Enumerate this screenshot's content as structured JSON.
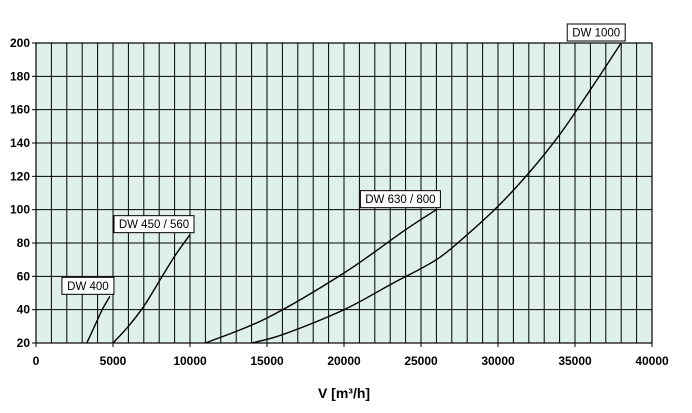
{
  "chart_data": {
    "type": "line",
    "title": "",
    "xlabel": "V [m³/h]",
    "ylabel": "",
    "xlim": [
      0,
      40000
    ],
    "ylim": [
      20,
      200
    ],
    "x_ticks": [
      0,
      5000,
      10000,
      15000,
      20000,
      25000,
      30000,
      35000,
      40000
    ],
    "y_ticks": [
      20,
      40,
      60,
      80,
      100,
      120,
      140,
      160,
      180,
      200
    ],
    "x_minor_step": 1000,
    "grid": true,
    "legend": "none",
    "background_color": "#dff0eb",
    "line_color": "#000000",
    "series": [
      {
        "name": "DW 400",
        "x": [
          3300,
          3800,
          4300,
          4800
        ],
        "y": [
          20,
          30,
          40,
          48
        ]
      },
      {
        "name": "DW 450 / 560",
        "x": [
          5000,
          6000,
          7000,
          8000,
          9000,
          10000
        ],
        "y": [
          20,
          30,
          42,
          57,
          72,
          85
        ]
      },
      {
        "name": "DW 630 / 800",
        "x": [
          11000,
          15000,
          20000,
          24000,
          26000
        ],
        "y": [
          20,
          35,
          62,
          88,
          100
        ]
      },
      {
        "name": "DW 1000",
        "x": [
          14000,
          16000,
          20000,
          23000,
          26000,
          28000,
          30000,
          32000,
          34000,
          36000,
          38000
        ],
        "y": [
          20,
          25,
          40,
          55,
          70,
          85,
          102,
          122,
          145,
          172,
          200
        ]
      }
    ]
  }
}
